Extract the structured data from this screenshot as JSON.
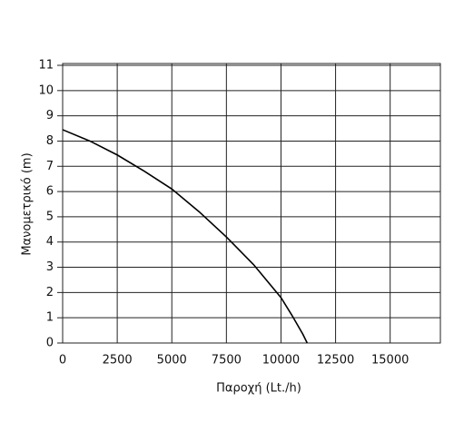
{
  "chart_data": {
    "type": "line",
    "x_label": "Παροχή (Lt./h)",
    "y_label": "Μανομετρικό  (m)",
    "x": [
      0,
      1250,
      2500,
      3750,
      5000,
      6250,
      7500,
      8750,
      10000,
      10500,
      11000,
      11200
    ],
    "series": [
      {
        "color": "#000000",
        "values": [
          8.45,
          8.0,
          7.45,
          6.8,
          6.1,
          5.2,
          4.2,
          3.1,
          1.8,
          1.1,
          0.35,
          0
        ]
      }
    ],
    "xlim": [
      0,
      17300
    ],
    "xticks": [
      0,
      2500,
      5000,
      7500,
      10000,
      12500,
      15000
    ],
    "ylim": [
      0,
      11
    ],
    "yticks": [
      0,
      1,
      2,
      3,
      4,
      5,
      6,
      7,
      8,
      9,
      10,
      11
    ],
    "grid": true
  }
}
